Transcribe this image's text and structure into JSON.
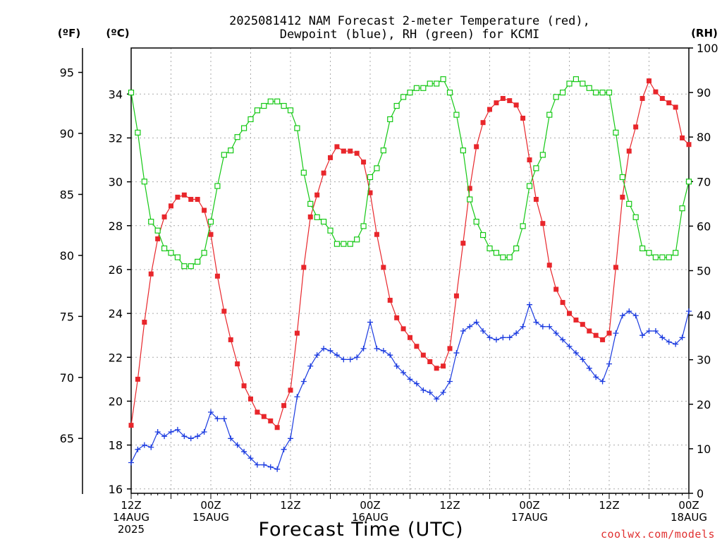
{
  "chart_data": {
    "type": "line",
    "title_line1": "2025081412 NAM Forecast 2-meter Temperature (red),",
    "title_line2": "Dewpoint (blue), RH (green) for KCMI",
    "xlabel": "Forecast Time (UTC)",
    "credit": "coolwx.com/models",
    "unit_f": "(ºF)",
    "unit_c": "(ºC)",
    "unit_rh": "(RH)",
    "x_hours": [
      0,
      1,
      2,
      3,
      4,
      5,
      6,
      7,
      8,
      9,
      10,
      11,
      12,
      13,
      14,
      15,
      16,
      17,
      18,
      19,
      20,
      21,
      22,
      23,
      24,
      25,
      26,
      27,
      28,
      29,
      30,
      31,
      32,
      33,
      34,
      35,
      36,
      37,
      38,
      39,
      40,
      41,
      42,
      43,
      44,
      45,
      46,
      47,
      48,
      49,
      50,
      51,
      52,
      53,
      54,
      55,
      56,
      57,
      58,
      59,
      60,
      61,
      62,
      63,
      64,
      65,
      66,
      67,
      68,
      69,
      70,
      71,
      72,
      73,
      74,
      75,
      76,
      77,
      78,
      79,
      80,
      81,
      82,
      83,
      84
    ],
    "xlim": [
      0,
      84
    ],
    "ylim_c": [
      15.8,
      36.1
    ],
    "ylim_f": [
      60.5,
      97.0
    ],
    "ylim_rh": [
      0,
      100
    ],
    "c_ticks": [
      16,
      18,
      20,
      22,
      24,
      26,
      28,
      30,
      32,
      34
    ],
    "f_ticks": [
      65,
      70,
      75,
      80,
      85,
      90,
      95
    ],
    "rh_ticks": [
      0,
      10,
      20,
      30,
      40,
      50,
      60,
      70,
      80,
      90,
      100
    ],
    "x_ticks": [
      {
        "hour": 0,
        "lines": [
          "12Z",
          "14AUG",
          "2025"
        ]
      },
      {
        "hour": 12,
        "lines": [
          "00Z",
          "15AUG"
        ]
      },
      {
        "hour": 24,
        "lines": [
          "12Z"
        ]
      },
      {
        "hour": 36,
        "lines": [
          "00Z",
          "16AUG"
        ]
      },
      {
        "hour": 48,
        "lines": [
          "12Z"
        ]
      },
      {
        "hour": 60,
        "lines": [
          "00Z",
          "17AUG"
        ]
      },
      {
        "hour": 72,
        "lines": [
          "12Z"
        ]
      },
      {
        "hour": 84,
        "lines": [
          "00Z",
          "18AUG"
        ]
      }
    ],
    "series": [
      {
        "name": "Temperature",
        "axis": "c",
        "color": "#e8262b",
        "marker": "filled-square",
        "values": [
          18.9,
          21.0,
          23.6,
          25.8,
          27.4,
          28.4,
          28.9,
          29.3,
          29.4,
          29.2,
          29.2,
          28.7,
          27.6,
          25.7,
          24.1,
          22.8,
          21.7,
          20.7,
          20.1,
          19.5,
          19.3,
          19.1,
          18.8,
          19.8,
          20.5,
          23.1,
          26.1,
          28.4,
          29.4,
          30.4,
          31.1,
          31.6,
          31.4,
          31.4,
          31.3,
          30.9,
          29.5,
          27.6,
          26.1,
          24.6,
          23.8,
          23.3,
          22.9,
          22.5,
          22.1,
          21.8,
          21.5,
          21.6,
          22.4,
          24.8,
          27.2,
          29.7,
          31.6,
          32.7,
          33.3,
          33.6,
          33.8,
          33.7,
          33.5,
          32.9,
          31.0,
          29.2,
          28.1,
          26.2,
          25.1,
          24.5,
          24.0,
          23.7,
          23.5,
          23.2,
          23.0,
          22.8,
          23.1,
          26.1,
          29.3,
          31.4,
          32.5,
          33.8,
          34.6,
          34.1,
          33.8,
          33.6,
          33.4,
          32.0,
          31.7
        ]
      },
      {
        "name": "Dewpoint",
        "axis": "c",
        "color": "#1a3ae0",
        "marker": "plus",
        "values": [
          17.2,
          17.8,
          18.0,
          17.9,
          18.6,
          18.4,
          18.6,
          18.7,
          18.4,
          18.3,
          18.4,
          18.6,
          19.5,
          19.2,
          19.2,
          18.3,
          18.0,
          17.7,
          17.4,
          17.1,
          17.1,
          17.0,
          16.9,
          17.8,
          18.3,
          20.2,
          20.9,
          21.6,
          22.1,
          22.4,
          22.3,
          22.1,
          21.9,
          21.9,
          22.0,
          22.4,
          23.6,
          22.4,
          22.3,
          22.1,
          21.6,
          21.3,
          21.0,
          20.8,
          20.5,
          20.4,
          20.1,
          20.4,
          20.9,
          22.2,
          23.2,
          23.4,
          23.6,
          23.2,
          22.9,
          22.8,
          22.9,
          22.9,
          23.1,
          23.4,
          24.4,
          23.6,
          23.4,
          23.4,
          23.1,
          22.8,
          22.5,
          22.2,
          21.9,
          21.5,
          21.1,
          20.9,
          21.7,
          23.1,
          23.9,
          24.1,
          23.9,
          23.0,
          23.2,
          23.2,
          22.9,
          22.7,
          22.6,
          22.9,
          24.1
        ]
      },
      {
        "name": "RH",
        "axis": "rh",
        "color": "#14c814",
        "marker": "open-square",
        "values": [
          90,
          81,
          70,
          61,
          59,
          55,
          54,
          53,
          51,
          51,
          52,
          54,
          61,
          69,
          76,
          77,
          80,
          82,
          84,
          86,
          87,
          88,
          88,
          87,
          86,
          82,
          72,
          65,
          62,
          61,
          59,
          56,
          56,
          56,
          57,
          60,
          71,
          73,
          77,
          84,
          87,
          89,
          90,
          91,
          91,
          92,
          92,
          93,
          90,
          85,
          77,
          66,
          61,
          58,
          55,
          54,
          53,
          53,
          55,
          60,
          69,
          73,
          76,
          85,
          89,
          90,
          92,
          93,
          92,
          91,
          90,
          90,
          90,
          81,
          71,
          65,
          62,
          55,
          54,
          53,
          53,
          53,
          54,
          64,
          70
        ]
      }
    ]
  }
}
